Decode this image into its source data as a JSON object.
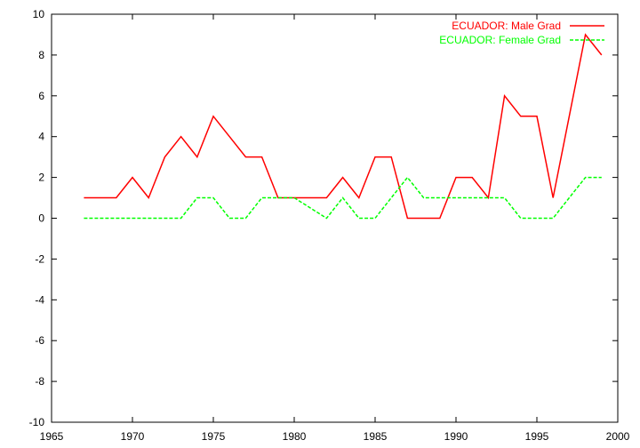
{
  "chart_data": {
    "type": "line",
    "x_ticks": [
      1965,
      1970,
      1975,
      1980,
      1985,
      1990,
      1995,
      2000
    ],
    "y_ticks": [
      -10,
      -8,
      -6,
      -4,
      -2,
      0,
      2,
      4,
      6,
      8,
      10
    ],
    "xlim": [
      1965,
      2000
    ],
    "ylim": [
      -10,
      10
    ],
    "grid": false,
    "legend_position": "top-right",
    "series": [
      {
        "name": "ECUADOR: Male Grad",
        "color": "#ff0000",
        "dash": "solid",
        "x": [
          1967,
          1968,
          1969,
          1970,
          1971,
          1972,
          1973,
          1974,
          1975,
          1976,
          1977,
          1978,
          1979,
          1980,
          1981,
          1982,
          1983,
          1984,
          1985,
          1986,
          1987,
          1988,
          1989,
          1990,
          1991,
          1992,
          1993,
          1994,
          1995,
          1996,
          1997,
          1998,
          1999
        ],
        "y": [
          1,
          1,
          1,
          2,
          1,
          3,
          4,
          3,
          5,
          4,
          3,
          3,
          1,
          1,
          1,
          1,
          2,
          1,
          3,
          3,
          0,
          0,
          0,
          2,
          2,
          1,
          6,
          5,
          5,
          1,
          5,
          9,
          8
        ]
      },
      {
        "name": "ECUADOR: Female Grad",
        "color": "#00ff00",
        "dash": "dashed",
        "x": [
          1967,
          1968,
          1969,
          1970,
          1971,
          1972,
          1973,
          1974,
          1975,
          1976,
          1977,
          1978,
          1979,
          1980,
          1981,
          1982,
          1983,
          1984,
          1985,
          1986,
          1987,
          1988,
          1989,
          1990,
          1991,
          1992,
          1993,
          1994,
          1995,
          1996,
          1997,
          1998,
          1999
        ],
        "y": [
          0,
          0,
          0,
          0,
          0,
          0,
          0,
          1,
          1,
          0,
          0,
          1,
          1,
          1,
          0.5,
          0,
          1,
          0,
          0,
          1,
          2,
          1,
          1,
          1,
          1,
          1,
          1,
          0,
          0,
          0,
          1,
          2,
          2
        ]
      }
    ]
  }
}
